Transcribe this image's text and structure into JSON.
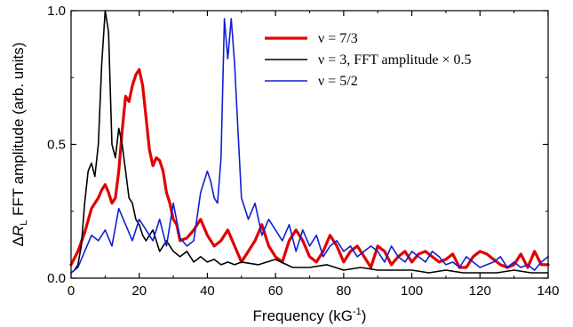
{
  "chart_data": {
    "type": "line",
    "xlabel": "Frequency (kG⁻¹)",
    "ylabel": "ΔRₗ FFT amplitude (arb. units)",
    "ylabel_parts": {
      "delta": "Δ",
      "R": "R",
      "sub": "L",
      "rest": " FFT amplitude (arb. units)"
    },
    "xlabel_parts": {
      "main": "Frequency (kG",
      "sup": "-1",
      "close": ")"
    },
    "xlim": [
      0,
      140
    ],
    "ylim": [
      0,
      1.0
    ],
    "xticks": [
      0,
      20,
      40,
      60,
      80,
      100,
      120,
      140
    ],
    "xtick_labels": [
      "0",
      "20",
      "40",
      "60",
      "80",
      "100",
      "120",
      "140"
    ],
    "yticks": [
      0.0,
      0.5,
      1.0
    ],
    "ytick_labels": [
      "0.0",
      "0.5",
      "1.0"
    ],
    "grid": false,
    "legend_position": "top-right",
    "series": [
      {
        "name": "ν = 7/3",
        "color": "#e00000",
        "width": 3.2,
        "x": [
          0,
          2,
          4,
          6,
          7,
          8,
          9,
          10,
          11,
          12,
          13,
          14,
          15,
          16,
          17,
          18,
          19,
          20,
          21,
          22,
          23,
          24,
          25,
          26,
          27,
          28,
          29,
          30,
          31,
          32,
          34,
          36,
          38,
          40,
          42,
          44,
          46,
          48,
          50,
          52,
          54,
          56,
          58,
          60,
          62,
          64,
          66,
          68,
          70,
          72,
          74,
          76,
          78,
          80,
          82,
          84,
          86,
          88,
          90,
          92,
          94,
          96,
          98,
          100,
          102,
          104,
          106,
          108,
          110,
          112,
          114,
          116,
          118,
          120,
          122,
          124,
          126,
          128,
          130,
          132,
          134,
          136,
          138,
          140
        ],
        "y": [
          0.05,
          0.1,
          0.17,
          0.26,
          0.28,
          0.3,
          0.33,
          0.35,
          0.32,
          0.28,
          0.3,
          0.4,
          0.55,
          0.68,
          0.66,
          0.72,
          0.76,
          0.78,
          0.72,
          0.6,
          0.48,
          0.42,
          0.45,
          0.44,
          0.4,
          0.32,
          0.28,
          0.22,
          0.2,
          0.14,
          0.15,
          0.18,
          0.22,
          0.16,
          0.12,
          0.14,
          0.18,
          0.12,
          0.06,
          0.1,
          0.14,
          0.2,
          0.12,
          0.08,
          0.06,
          0.14,
          0.18,
          0.14,
          0.08,
          0.06,
          0.1,
          0.16,
          0.12,
          0.06,
          0.1,
          0.12,
          0.08,
          0.04,
          0.12,
          0.1,
          0.05,
          0.08,
          0.1,
          0.06,
          0.09,
          0.1,
          0.08,
          0.06,
          0.07,
          0.09,
          0.04,
          0.04,
          0.08,
          0.1,
          0.09,
          0.07,
          0.05,
          0.04,
          0.05,
          0.09,
          0.04,
          0.1,
          0.05,
          0.05
        ]
      },
      {
        "name": "ν = 3, FFT amplitude × 0.5",
        "color": "#000000",
        "width": 1.6,
        "x": [
          0,
          1,
          2,
          3,
          4,
          5,
          6,
          7,
          8,
          9,
          10,
          11,
          12,
          13,
          14,
          15,
          16,
          17,
          18,
          19,
          20,
          21,
          22,
          24,
          26,
          28,
          30,
          32,
          34,
          36,
          38,
          40,
          42,
          44,
          46,
          48,
          50,
          55,
          60,
          65,
          70,
          75,
          80,
          85,
          90,
          95,
          100,
          105,
          110,
          115,
          120,
          125,
          130,
          135,
          140
        ],
        "y": [
          0.02,
          0.03,
          0.05,
          0.12,
          0.28,
          0.4,
          0.43,
          0.38,
          0.5,
          0.8,
          1.0,
          0.92,
          0.5,
          0.45,
          0.56,
          0.5,
          0.4,
          0.3,
          0.28,
          0.22,
          0.2,
          0.16,
          0.14,
          0.18,
          0.1,
          0.14,
          0.1,
          0.08,
          0.1,
          0.06,
          0.08,
          0.06,
          0.07,
          0.05,
          0.06,
          0.05,
          0.06,
          0.05,
          0.07,
          0.04,
          0.04,
          0.05,
          0.03,
          0.04,
          0.03,
          0.03,
          0.03,
          0.02,
          0.03,
          0.02,
          0.02,
          0.02,
          0.03,
          0.02,
          0.02
        ]
      },
      {
        "name": "ν = 5/2",
        "color": "#1020d0",
        "width": 1.6,
        "x": [
          0,
          2,
          4,
          6,
          8,
          10,
          12,
          14,
          16,
          18,
          20,
          22,
          24,
          26,
          28,
          30,
          32,
          34,
          36,
          38,
          40,
          41,
          42,
          43,
          44,
          45,
          46,
          47,
          48,
          49,
          50,
          52,
          54,
          56,
          58,
          60,
          62,
          64,
          66,
          68,
          70,
          72,
          74,
          76,
          78,
          80,
          82,
          84,
          86,
          88,
          90,
          92,
          94,
          96,
          98,
          100,
          102,
          104,
          106,
          108,
          110,
          112,
          114,
          116,
          118,
          120,
          122,
          124,
          126,
          128,
          130,
          132,
          134,
          136,
          138,
          140
        ],
        "y": [
          0.02,
          0.04,
          0.1,
          0.16,
          0.14,
          0.18,
          0.12,
          0.26,
          0.2,
          0.14,
          0.22,
          0.18,
          0.14,
          0.22,
          0.12,
          0.28,
          0.15,
          0.12,
          0.14,
          0.32,
          0.4,
          0.36,
          0.3,
          0.28,
          0.45,
          0.97,
          0.82,
          0.97,
          0.8,
          0.55,
          0.3,
          0.22,
          0.28,
          0.16,
          0.22,
          0.18,
          0.14,
          0.2,
          0.1,
          0.18,
          0.12,
          0.16,
          0.08,
          0.12,
          0.14,
          0.1,
          0.12,
          0.08,
          0.1,
          0.12,
          0.1,
          0.06,
          0.12,
          0.08,
          0.06,
          0.1,
          0.08,
          0.06,
          0.1,
          0.08,
          0.05,
          0.06,
          0.04,
          0.08,
          0.06,
          0.04,
          0.05,
          0.06,
          0.08,
          0.04,
          0.06,
          0.04,
          0.05,
          0.03,
          0.06,
          0.08
        ]
      }
    ]
  }
}
